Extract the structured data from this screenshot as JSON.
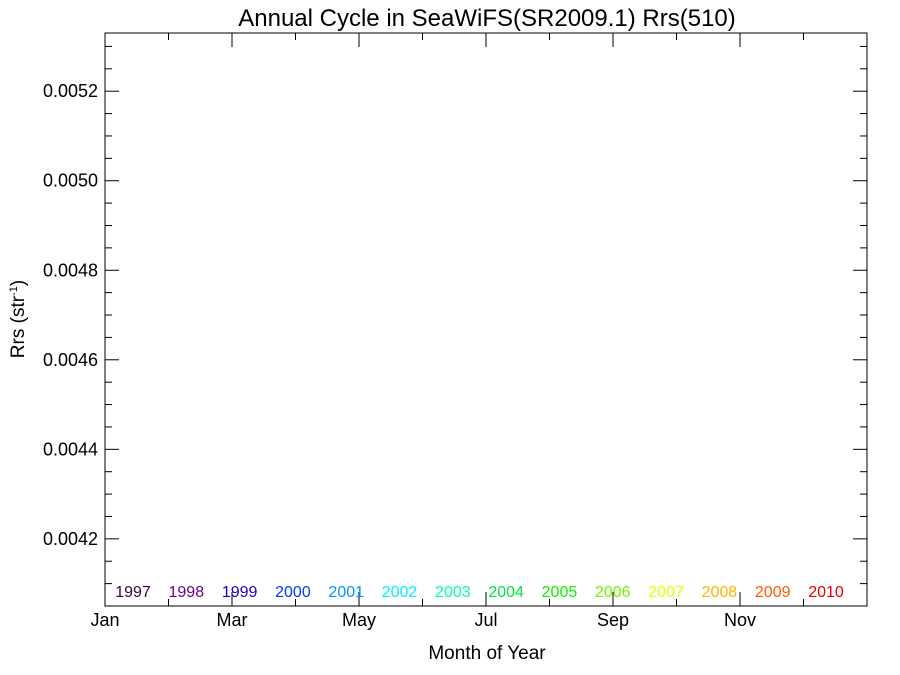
{
  "chart_data": {
    "type": "line",
    "title": "Annual Cycle in SeaWiFS(SR2009.1) Rrs(510)",
    "xlabel": "Month of Year",
    "ylabel": "Rrs (str",
    "ylabel_superscript": "-1",
    "ylabel_suffix": ")",
    "xlim": [
      0,
      12
    ],
    "ylim": [
      0.00405,
      0.00533
    ],
    "x_ticks": [
      {
        "label": "Jan",
        "value": 0
      },
      {
        "label": "Mar",
        "value": 2
      },
      {
        "label": "May",
        "value": 4
      },
      {
        "label": "Jul",
        "value": 6
      },
      {
        "label": "Sep",
        "value": 8
      },
      {
        "label": "Nov",
        "value": 10
      }
    ],
    "y_ticks": [
      {
        "label": "0.0042",
        "value": 0.0042
      },
      {
        "label": "0.0044",
        "value": 0.0044
      },
      {
        "label": "0.0046",
        "value": 0.0046
      },
      {
        "label": "0.0048",
        "value": 0.0048
      },
      {
        "label": "0.0050",
        "value": 0.005
      },
      {
        "label": "0.0052",
        "value": 0.0052
      }
    ],
    "y_minor_step": 5e-05,
    "grid": false,
    "legend_placement": "bottom inside",
    "series": [
      {
        "name": "1997",
        "color": "#3d0045",
        "values": []
      },
      {
        "name": "1998",
        "color": "#6a0096",
        "values": []
      },
      {
        "name": "1999",
        "color": "#1800d6",
        "values": []
      },
      {
        "name": "2000",
        "color": "#0038ff",
        "values": []
      },
      {
        "name": "2001",
        "color": "#0096ff",
        "values": []
      },
      {
        "name": "2002",
        "color": "#00f0ff",
        "values": []
      },
      {
        "name": "2003",
        "color": "#00ffa6",
        "values": []
      },
      {
        "name": "2004",
        "color": "#00e640",
        "values": []
      },
      {
        "name": "2005",
        "color": "#0ff000",
        "values": []
      },
      {
        "name": "2006",
        "color": "#72f000",
        "values": []
      },
      {
        "name": "2007",
        "color": "#e6ff00",
        "values": []
      },
      {
        "name": "2008",
        "color": "#ffb400",
        "values": []
      },
      {
        "name": "2009",
        "color": "#ff5a00",
        "values": []
      },
      {
        "name": "2010",
        "color": "#e60000",
        "values": []
      }
    ]
  }
}
